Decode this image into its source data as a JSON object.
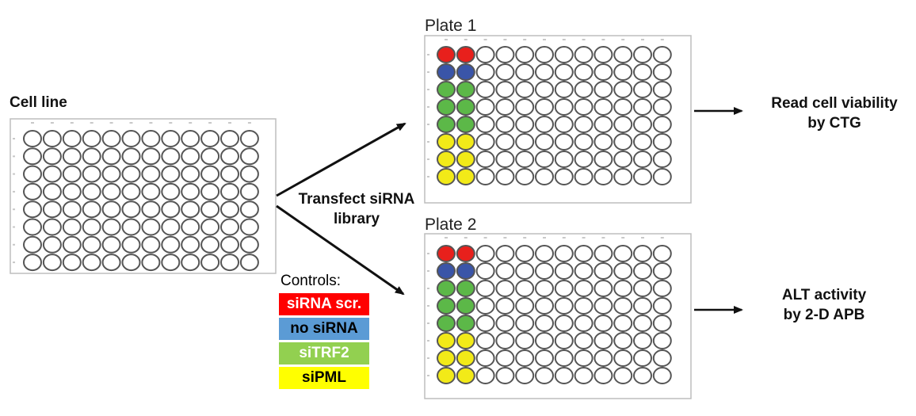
{
  "cell_line": {
    "title": "Cell line"
  },
  "step": {
    "line1": "Transfect siRNA",
    "line2": "library"
  },
  "plate1": {
    "title": "Plate 1",
    "readout_line1": "Read cell viability",
    "readout_line2": "by CTG"
  },
  "plate2": {
    "title": "Plate 2",
    "readout_line1": "ALT activity",
    "readout_line2": "by 2-D APB"
  },
  "controls": {
    "title": "Controls:",
    "items": [
      {
        "label": "siRNA scr.",
        "color": "#ff0000",
        "text_color": "#ffffff"
      },
      {
        "label": "no siRNA",
        "color": "#5b9bd5",
        "text_color": "#000000"
      },
      {
        "label": "siTRF2",
        "color": "#92d050",
        "text_color": "#ffffff"
      },
      {
        "label": "siPML",
        "color": "#ffff00",
        "text_color": "#000000"
      }
    ]
  },
  "well_colors": {
    "red": "#e8201c",
    "blue": "#3a55a8",
    "green": "#5cb848",
    "yellow": "#f2ea18"
  }
}
